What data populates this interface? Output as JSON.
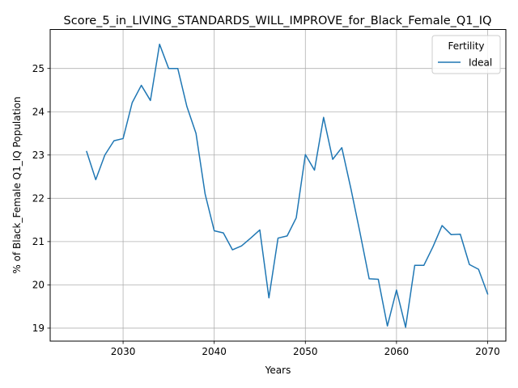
{
  "chart_data": {
    "type": "line",
    "title": "Score_5_in_LIVING_STANDARDS_WILL_IMPROVE_for_Black_Female_Q1_IQ",
    "xlabel": "Years",
    "ylabel": "% of Black_Female Q1_IQ Population",
    "xlim": [
      2022,
      2072
    ],
    "ylim": [
      18.7,
      25.9
    ],
    "xticks": [
      2030,
      2040,
      2050,
      2060,
      2070
    ],
    "yticks": [
      19,
      20,
      21,
      22,
      23,
      24,
      25
    ],
    "grid": true,
    "legend": {
      "title": "Fertility",
      "position": "top-right"
    },
    "series": [
      {
        "name": "Ideal",
        "color": "#1f77b4",
        "x": [
          2026,
          2027,
          2028,
          2029,
          2030,
          2031,
          2032,
          2033,
          2034,
          2035,
          2036,
          2037,
          2038,
          2039,
          2040,
          2041,
          2042,
          2043,
          2044,
          2045,
          2046,
          2047,
          2048,
          2049,
          2050,
          2051,
          2052,
          2053,
          2054,
          2055,
          2056,
          2057,
          2058,
          2059,
          2060,
          2061,
          2062,
          2063,
          2064,
          2065,
          2066,
          2067,
          2068,
          2069,
          2070
        ],
        "values": [
          23.08,
          22.43,
          23.0,
          23.33,
          23.38,
          24.21,
          24.61,
          24.26,
          25.56,
          25.0,
          25.0,
          24.12,
          23.5,
          22.1,
          21.25,
          21.2,
          20.81,
          20.9,
          21.08,
          21.27,
          19.7,
          21.08,
          21.13,
          21.55,
          23.01,
          22.65,
          23.87,
          22.9,
          23.17,
          22.22,
          21.2,
          20.14,
          20.13,
          19.05,
          19.88,
          19.02,
          20.45,
          20.45,
          20.88,
          21.37,
          21.16,
          21.17,
          20.47,
          20.36,
          19.79
        ]
      }
    ]
  }
}
